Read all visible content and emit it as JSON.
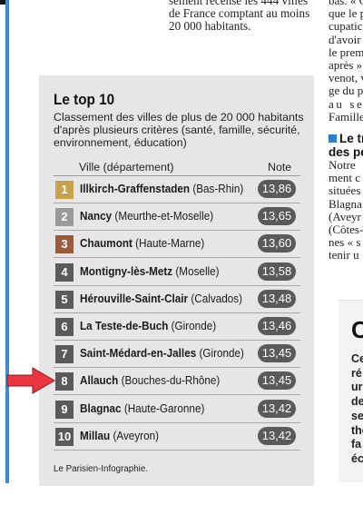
{
  "article": {
    "lines": [
      "sement recense les 444 villes",
      "de France comptant au moins",
      "20 000 habitants."
    ]
  },
  "right_column": {
    "lines_top": [
      "bas. « C",
      "que le p",
      "cupatic",
      "d'avoir",
      "le prem",
      "après »",
      "venot, v",
      "ge du p",
      "au se",
      "Famille"
    ],
    "subhead": [
      "Le tr",
      "des pe"
    ],
    "lines_bottom": [
      "Notre",
      "ment c",
      "situées",
      "Blagna",
      "(Aveyr",
      "(Côtes-",
      "nes « s",
      "tenir u"
    ]
  },
  "inset": {
    "big_letter": "C",
    "lines": [
      "Ce",
      "ré",
      "ur",
      "de",
      "se",
      "the",
      "fa",
      "éc"
    ]
  },
  "panel": {
    "title": "Le top 10",
    "subtitle": "Classement des villes de plus de 20 000 habitants d'après plusieurs critères (santé, famille, sécurité, environnement, éducation)",
    "col_city": "Ville",
    "col_city_suffix": "(département)",
    "col_note": "Note",
    "source": "Le Parisien-Infographie.",
    "rows": [
      {
        "rank": "1",
        "city": "Illkirch-Graffenstaden",
        "dept": "(Bas-Rhin)",
        "note": "13,86",
        "color": "#c8a24a"
      },
      {
        "rank": "2",
        "city": "Nancy",
        "dept": "(Meurthe-et-Moselle)",
        "note": "13,65",
        "color": "#9a9a9a"
      },
      {
        "rank": "3",
        "city": "Chaumont",
        "dept": "(Haute-Marne)",
        "note": "13,60",
        "color": "#9b5a3c"
      },
      {
        "rank": "4",
        "city": "Montigny-lès-Metz",
        "dept": "(Moselle)",
        "note": "13,58",
        "color": "#5a5a5a"
      },
      {
        "rank": "5",
        "city": "Hérouville-Saint-Clair",
        "dept": "(Calvados)",
        "note": "13,48",
        "color": "#5a5a5a"
      },
      {
        "rank": "6",
        "city": "La Teste-de-Buch",
        "dept": "(Gironde)",
        "note": "13,46",
        "color": "#5a5a5a"
      },
      {
        "rank": "7",
        "city": "Saint-Médard-en-Jalles",
        "dept": "(Gironde)",
        "note": "13,45",
        "color": "#5a5a5a"
      },
      {
        "rank": "8",
        "city": "Allauch",
        "dept": "(Bouches-du-Rhône)",
        "note": "13,45",
        "color": "#5a5a5a"
      },
      {
        "rank": "9",
        "city": "Blagnac",
        "dept": "(Haute-Garonne)",
        "note": "13,42",
        "color": "#5a5a5a"
      },
      {
        "rank": "10",
        "city": "Millau",
        "dept": "(Aveyron)",
        "note": "13,42",
        "color": "#5a5a5a"
      }
    ]
  },
  "arrow_color": "#e8353f"
}
